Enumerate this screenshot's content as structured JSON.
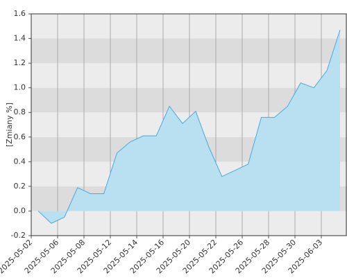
{
  "chart_data": {
    "type": "area",
    "y_label": "[Zmiany %]",
    "xticks": [
      "2025-05-02",
      "2025-05-06",
      "2025-05-08",
      "2025-05-12",
      "2025-05-14",
      "2025-05-16",
      "2025-05-20",
      "2025-05-22",
      "2025-05-26",
      "2025-05-28",
      "2025-05-30",
      "2025-06-03"
    ],
    "values": [
      0.0,
      -0.1,
      -0.05,
      0.19,
      0.14,
      0.14,
      0.47,
      0.56,
      0.61,
      0.61,
      0.85,
      0.71,
      0.81,
      0.52,
      0.28,
      0.33,
      0.38,
      0.76,
      0.76,
      0.85,
      1.04,
      1.0,
      1.14,
      1.47
    ],
    "color": "#4aa8e0",
    "fill": "#b9e0f0",
    "ylim": [
      -0.2,
      1.6
    ],
    "yticks": [
      {
        "value": -0.2,
        "label": "-0.2"
      },
      {
        "value": 0,
        "label": "0.0"
      },
      {
        "value": 0.2,
        "label": "0.2"
      },
      {
        "value": 0.4,
        "label": "0.4"
      },
      {
        "value": 0.6,
        "label": "0.6"
      },
      {
        "value": 0.8,
        "label": "0.8"
      },
      {
        "value": 1,
        "label": "1.0"
      },
      {
        "value": 1.2,
        "label": "1.2"
      },
      {
        "value": 1.4,
        "label": "1.4"
      },
      {
        "value": 1.6,
        "label": "1.6"
      }
    ],
    "grid": true
  }
}
